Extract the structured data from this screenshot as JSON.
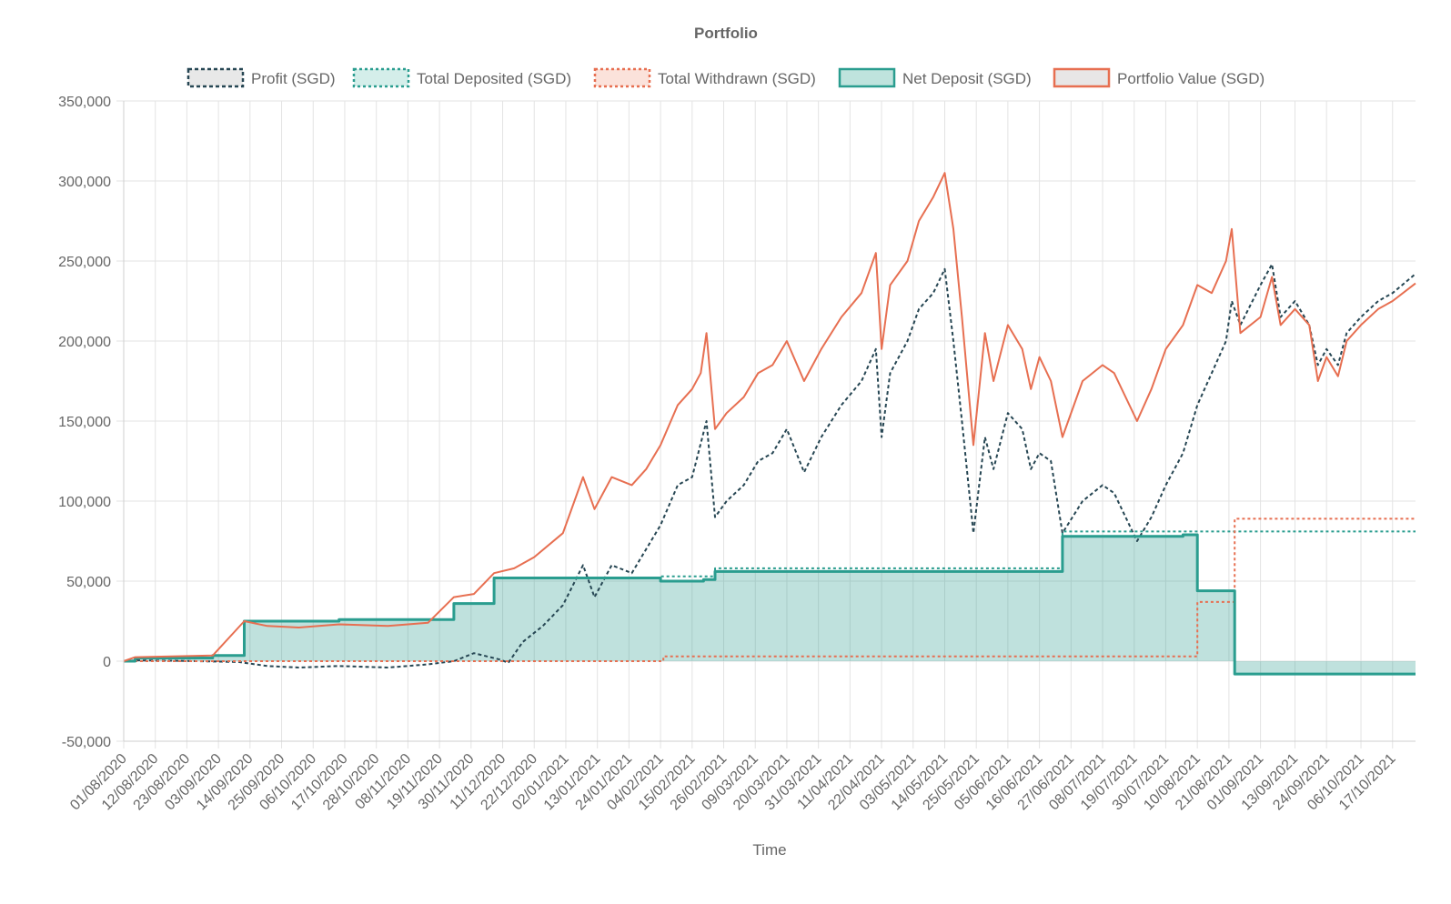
{
  "chart_data": {
    "type": "line",
    "title": "Portfolio",
    "xlabel": "Time",
    "ylabel": "",
    "ylim": [
      -50000,
      350000
    ],
    "yticks": [
      -50000,
      0,
      50000,
      100000,
      150000,
      200000,
      250000,
      300000,
      350000
    ],
    "ytick_labels": [
      "-50,000",
      "0",
      "50,000",
      "100,000",
      "150,000",
      "200,000",
      "250,000",
      "300,000",
      "350,000"
    ],
    "x_start": "01/08/2020",
    "x_end": "25/10/2021",
    "x_tick_labels": [
      "01/08/2020",
      "12/08/2020",
      "23/08/2020",
      "03/09/2020",
      "14/09/2020",
      "25/09/2020",
      "06/10/2020",
      "17/10/2020",
      "28/10/2020",
      "08/11/2020",
      "19/11/2020",
      "30/11/2020",
      "11/12/2020",
      "22/12/2020",
      "02/01/2021",
      "13/01/2021",
      "24/01/2021",
      "04/02/2021",
      "15/02/2021",
      "26/02/2021",
      "09/03/2021",
      "20/03/2021",
      "31/03/2021",
      "11/04/2021",
      "22/04/2021",
      "03/05/2021",
      "14/05/2021",
      "25/05/2021",
      "05/06/2021",
      "16/06/2021",
      "27/06/2021",
      "08/07/2021",
      "19/07/2021",
      "30/07/2021",
      "10/08/2021",
      "21/08/2021",
      "01/09/2021",
      "13/09/2021",
      "24/09/2021",
      "06/10/2021",
      "17/10/2021"
    ],
    "grid": true,
    "legend_position": "top",
    "series": [
      {
        "name": "Profit (SGD)",
        "color": "#264653",
        "style": "dashed",
        "points": [
          [
            "01/08/2020",
            0
          ],
          [
            "05/08/2020",
            500
          ],
          [
            "20/08/2020",
            200
          ],
          [
            "10/09/2020",
            -500
          ],
          [
            "20/09/2020",
            -3000
          ],
          [
            "01/10/2020",
            -4000
          ],
          [
            "15/10/2020",
            -3000
          ],
          [
            "01/11/2020",
            -4000
          ],
          [
            "15/11/2020",
            -2000
          ],
          [
            "24/11/2020",
            0
          ],
          [
            "01/12/2020",
            5000
          ],
          [
            "10/12/2020",
            1000
          ],
          [
            "13/12/2020",
            -1000
          ],
          [
            "18/12/2020",
            12000
          ],
          [
            "25/12/2020",
            22000
          ],
          [
            "01/01/2021",
            35000
          ],
          [
            "08/01/2021",
            60000
          ],
          [
            "12/01/2021",
            40000
          ],
          [
            "18/01/2021",
            60000
          ],
          [
            "25/01/2021",
            55000
          ],
          [
            "04/02/2021",
            85000
          ],
          [
            "10/02/2021",
            110000
          ],
          [
            "15/02/2021",
            115000
          ],
          [
            "20/02/2021",
            150000
          ],
          [
            "23/02/2021",
            90000
          ],
          [
            "27/02/2021",
            100000
          ],
          [
            "05/03/2021",
            110000
          ],
          [
            "10/03/2021",
            125000
          ],
          [
            "15/03/2021",
            130000
          ],
          [
            "20/03/2021",
            145000
          ],
          [
            "26/03/2021",
            118000
          ],
          [
            "01/04/2021",
            140000
          ],
          [
            "08/04/2021",
            160000
          ],
          [
            "15/04/2021",
            175000
          ],
          [
            "20/04/2021",
            195000
          ],
          [
            "22/04/2021",
            140000
          ],
          [
            "25/04/2021",
            180000
          ],
          [
            "01/05/2021",
            200000
          ],
          [
            "05/05/2021",
            220000
          ],
          [
            "10/05/2021",
            230000
          ],
          [
            "14/05/2021",
            245000
          ],
          [
            "17/05/2021",
            200000
          ],
          [
            "20/05/2021",
            150000
          ],
          [
            "24/05/2021",
            80000
          ],
          [
            "28/05/2021",
            140000
          ],
          [
            "31/05/2021",
            120000
          ],
          [
            "05/06/2021",
            155000
          ],
          [
            "10/06/2021",
            145000
          ],
          [
            "13/06/2021",
            120000
          ],
          [
            "16/06/2021",
            130000
          ],
          [
            "20/06/2021",
            125000
          ],
          [
            "24/06/2021",
            80000
          ],
          [
            "01/07/2021",
            100000
          ],
          [
            "08/07/2021",
            110000
          ],
          [
            "12/07/2021",
            105000
          ],
          [
            "20/07/2021",
            75000
          ],
          [
            "25/07/2021",
            90000
          ],
          [
            "30/07/2021",
            110000
          ],
          [
            "05/08/2021",
            130000
          ],
          [
            "10/08/2021",
            160000
          ],
          [
            "15/08/2021",
            180000
          ],
          [
            "20/08/2021",
            200000
          ],
          [
            "22/08/2021",
            225000
          ],
          [
            "25/08/2021",
            210000
          ],
          [
            "01/09/2021",
            235000
          ],
          [
            "05/09/2021",
            248000
          ],
          [
            "08/09/2021",
            215000
          ],
          [
            "13/09/2021",
            225000
          ],
          [
            "18/09/2021",
            210000
          ],
          [
            "21/09/2021",
            185000
          ],
          [
            "24/09/2021",
            195000
          ],
          [
            "28/09/2021",
            185000
          ],
          [
            "01/10/2021",
            205000
          ],
          [
            "06/10/2021",
            215000
          ],
          [
            "12/10/2021",
            225000
          ],
          [
            "17/10/2021",
            230000
          ],
          [
            "25/10/2021",
            242000
          ]
        ]
      },
      {
        "name": "Total Deposited (SGD)",
        "color": "#2a9d8f",
        "style": "dotted",
        "points": [
          [
            "01/08/2020",
            0
          ],
          [
            "05/08/2020",
            2000
          ],
          [
            "01/09/2020",
            3500
          ],
          [
            "12/09/2020",
            25000
          ],
          [
            "15/10/2020",
            26000
          ],
          [
            "24/11/2020",
            36000
          ],
          [
            "08/12/2020",
            52000
          ],
          [
            "04/02/2021",
            53000
          ],
          [
            "23/02/2021",
            58000
          ],
          [
            "24/06/2021",
            81000
          ],
          [
            "10/08/2021",
            81000
          ],
          [
            "25/10/2021",
            81000
          ]
        ]
      },
      {
        "name": "Total Withdrawn (SGD)",
        "color": "#e76f51",
        "style": "dotted",
        "points": [
          [
            "01/08/2020",
            0
          ],
          [
            "04/02/2021",
            0
          ],
          [
            "05/02/2021",
            3000
          ],
          [
            "09/08/2021",
            3000
          ],
          [
            "10/08/2021",
            37000
          ],
          [
            "22/08/2021",
            37000
          ],
          [
            "23/08/2021",
            89000
          ],
          [
            "25/10/2021",
            89000
          ]
        ]
      },
      {
        "name": "Net Deposit (SGD)",
        "color": "#2a9d8f",
        "fill": "rgba(42,157,143,0.30)",
        "style": "solid",
        "points": [
          [
            "01/08/2020",
            0
          ],
          [
            "05/08/2020",
            2000
          ],
          [
            "01/09/2020",
            3500
          ],
          [
            "12/09/2020",
            25000
          ],
          [
            "15/10/2020",
            26000
          ],
          [
            "24/11/2020",
            36000
          ],
          [
            "08/12/2020",
            52000
          ],
          [
            "04/02/2021",
            50000
          ],
          [
            "19/02/2021",
            51000
          ],
          [
            "23/02/2021",
            56000
          ],
          [
            "24/06/2021",
            78000
          ],
          [
            "05/08/2021",
            79000
          ],
          [
            "10/08/2021",
            44000
          ],
          [
            "22/08/2021",
            44000
          ],
          [
            "23/08/2021",
            -8000
          ],
          [
            "25/10/2021",
            -8000
          ]
        ]
      },
      {
        "name": "Portfolio Value (SGD)",
        "color": "#e76f51",
        "style": "solid",
        "points": [
          [
            "01/08/2020",
            0
          ],
          [
            "05/08/2020",
            2500
          ],
          [
            "01/09/2020",
            3500
          ],
          [
            "12/09/2020",
            25000
          ],
          [
            "20/09/2020",
            22000
          ],
          [
            "01/10/2020",
            21000
          ],
          [
            "15/10/2020",
            23000
          ],
          [
            "01/11/2020",
            22000
          ],
          [
            "15/11/2020",
            24000
          ],
          [
            "24/11/2020",
            40000
          ],
          [
            "01/12/2020",
            42000
          ],
          [
            "08/12/2020",
            55000
          ],
          [
            "15/12/2020",
            58000
          ],
          [
            "22/12/2020",
            65000
          ],
          [
            "01/01/2021",
            80000
          ],
          [
            "08/01/2021",
            115000
          ],
          [
            "12/01/2021",
            95000
          ],
          [
            "18/01/2021",
            115000
          ],
          [
            "25/01/2021",
            110000
          ],
          [
            "30/01/2021",
            120000
          ],
          [
            "04/02/2021",
            135000
          ],
          [
            "10/02/2021",
            160000
          ],
          [
            "15/02/2021",
            170000
          ],
          [
            "18/02/2021",
            180000
          ],
          [
            "20/02/2021",
            205000
          ],
          [
            "23/02/2021",
            145000
          ],
          [
            "27/02/2021",
            155000
          ],
          [
            "05/03/2021",
            165000
          ],
          [
            "10/03/2021",
            180000
          ],
          [
            "15/03/2021",
            185000
          ],
          [
            "20/03/2021",
            200000
          ],
          [
            "26/03/2021",
            175000
          ],
          [
            "01/04/2021",
            195000
          ],
          [
            "08/04/2021",
            215000
          ],
          [
            "15/04/2021",
            230000
          ],
          [
            "20/04/2021",
            255000
          ],
          [
            "22/04/2021",
            195000
          ],
          [
            "25/04/2021",
            235000
          ],
          [
            "01/05/2021",
            250000
          ],
          [
            "05/05/2021",
            275000
          ],
          [
            "10/05/2021",
            290000
          ],
          [
            "14/05/2021",
            305000
          ],
          [
            "17/05/2021",
            270000
          ],
          [
            "20/05/2021",
            215000
          ],
          [
            "24/05/2021",
            135000
          ],
          [
            "28/05/2021",
            205000
          ],
          [
            "31/05/2021",
            175000
          ],
          [
            "05/06/2021",
            210000
          ],
          [
            "10/06/2021",
            195000
          ],
          [
            "13/06/2021",
            170000
          ],
          [
            "16/06/2021",
            190000
          ],
          [
            "20/06/2021",
            175000
          ],
          [
            "24/06/2021",
            140000
          ],
          [
            "01/07/2021",
            175000
          ],
          [
            "08/07/2021",
            185000
          ],
          [
            "12/07/2021",
            180000
          ],
          [
            "20/07/2021",
            150000
          ],
          [
            "25/07/2021",
            170000
          ],
          [
            "30/07/2021",
            195000
          ],
          [
            "05/08/2021",
            210000
          ],
          [
            "10/08/2021",
            235000
          ],
          [
            "15/08/2021",
            230000
          ],
          [
            "20/08/2021",
            250000
          ],
          [
            "22/08/2021",
            270000
          ],
          [
            "25/08/2021",
            205000
          ],
          [
            "01/09/2021",
            215000
          ],
          [
            "05/09/2021",
            240000
          ],
          [
            "08/09/2021",
            210000
          ],
          [
            "13/09/2021",
            220000
          ],
          [
            "18/09/2021",
            210000
          ],
          [
            "21/09/2021",
            175000
          ],
          [
            "24/09/2021",
            190000
          ],
          [
            "28/09/2021",
            178000
          ],
          [
            "01/10/2021",
            200000
          ],
          [
            "06/10/2021",
            210000
          ],
          [
            "12/10/2021",
            220000
          ],
          [
            "17/10/2021",
            225000
          ],
          [
            "25/10/2021",
            236000
          ]
        ]
      }
    ]
  }
}
